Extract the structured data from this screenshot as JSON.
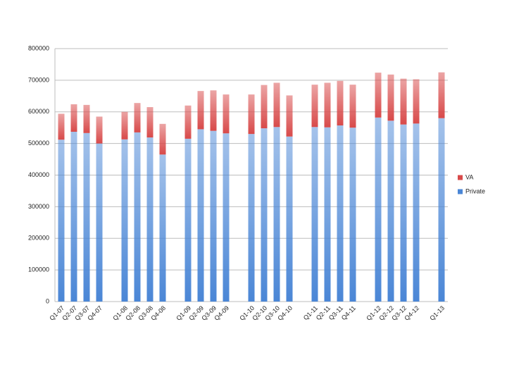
{
  "chart_data": {
    "type": "stacked-bar",
    "categories": [
      "Q1-07",
      "Q2-07",
      "Q3-07",
      "Q4-07",
      null,
      "Q1-08",
      "Q2-08",
      "Q3-08",
      "Q4-08",
      null,
      "Q1-09",
      "Q2-09",
      "Q3-09",
      "Q4-09",
      null,
      "Q1-10",
      "Q2-10",
      "Q3-10",
      "Q4-10",
      null,
      "Q1-11",
      "Q2-11",
      "Q3-11",
      "Q4-11",
      null,
      "Q1-12",
      "Q2-12",
      "Q3-12",
      "Q4-12",
      null,
      "Q1-13"
    ],
    "series": [
      {
        "name": "Private",
        "color": "#4a86d6",
        "values": [
          512000,
          537000,
          533000,
          500000,
          null,
          513000,
          535000,
          519000,
          465000,
          null,
          515000,
          545000,
          540000,
          532000,
          null,
          530000,
          548000,
          552000,
          522000,
          null,
          552000,
          551000,
          557000,
          550000,
          null,
          582000,
          572000,
          560000,
          563000,
          null,
          580000
        ]
      },
      {
        "name": "VA",
        "color": "#d84a4a",
        "values": [
          82000,
          87000,
          89000,
          85000,
          null,
          87000,
          93000,
          96000,
          97000,
          null,
          105000,
          121000,
          128000,
          123000,
          null,
          125000,
          137000,
          140000,
          130000,
          null,
          134000,
          141000,
          141000,
          136000,
          null,
          142000,
          146000,
          145000,
          140000,
          null,
          145000
        ]
      }
    ],
    "ylim": [
      0,
      800000
    ],
    "yticks": [
      0,
      100000,
      200000,
      300000,
      400000,
      500000,
      600000,
      700000,
      800000
    ],
    "grid": true,
    "legend": "right"
  }
}
